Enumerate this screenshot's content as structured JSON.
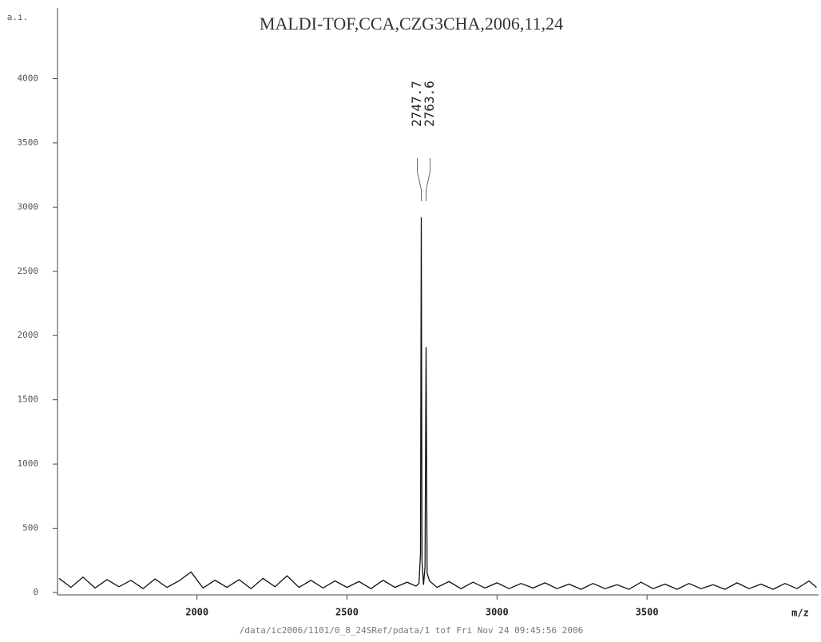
{
  "chart_data": {
    "type": "line",
    "title": "MALDI-TOF,CCA,CZG3CHA,2006,11,24",
    "y_label": "a.i.",
    "x_label": "m/z",
    "footer": "/data/ic2006/1101/0_8_24SRef/pdata/1   tof   Fri Nov 24 09:45:56 2006",
    "color": "#111111",
    "x": [
      1540,
      1580,
      1620,
      1660,
      1700,
      1740,
      1780,
      1820,
      1860,
      1900,
      1940,
      1980,
      2020,
      2060,
      2100,
      2140,
      2180,
      2220,
      2260,
      2300,
      2340,
      2380,
      2420,
      2460,
      2500,
      2540,
      2580,
      2620,
      2660,
      2700,
      2730,
      2740,
      2745,
      2747.7,
      2750,
      2755,
      2760,
      2763.6,
      2767,
      2775,
      2800,
      2840,
      2880,
      2920,
      2960,
      3000,
      3040,
      3080,
      3120,
      3160,
      3200,
      3240,
      3280,
      3320,
      3360,
      3400,
      3440,
      3480,
      3520,
      3560,
      3600,
      3640,
      3680,
      3720,
      3760,
      3800,
      3840,
      3880,
      3920,
      3960,
      4000,
      4040,
      4065
    ],
    "values": [
      110,
      40,
      120,
      35,
      100,
      45,
      95,
      30,
      105,
      40,
      90,
      160,
      35,
      95,
      40,
      100,
      30,
      110,
      45,
      130,
      40,
      95,
      35,
      90,
      40,
      85,
      30,
      95,
      40,
      80,
      50,
      70,
      300,
      2920,
      250,
      60,
      200,
      1910,
      150,
      90,
      40,
      85,
      30,
      80,
      35,
      75,
      30,
      70,
      35,
      75,
      30,
      65,
      25,
      70,
      30,
      60,
      25,
      80,
      30,
      65,
      25,
      70,
      30,
      60,
      25,
      75,
      30,
      65,
      25,
      70,
      30,
      90,
      40
    ],
    "peak_labels": [
      2747.7,
      2763.6
    ],
    "xlim": [
      1535,
      4072
    ],
    "ylim": [
      0,
      4550
    ],
    "xticks": [
      2000,
      2500,
      3000,
      3500
    ],
    "yticks": [
      0,
      500,
      1000,
      1500,
      2000,
      2500,
      3000,
      3500,
      4000
    ]
  }
}
